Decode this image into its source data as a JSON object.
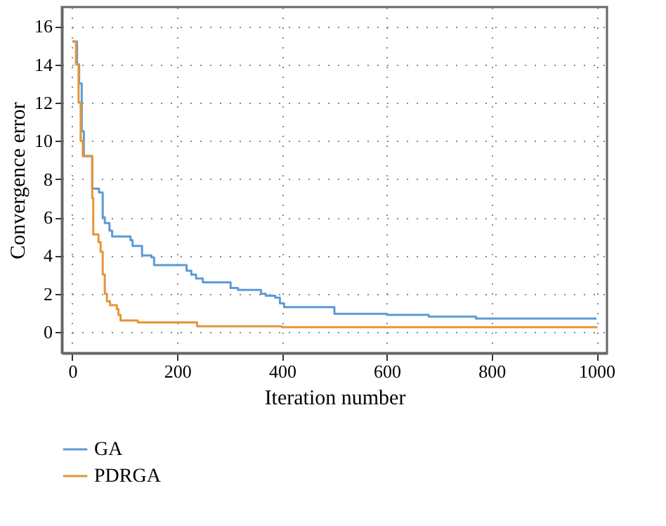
{
  "chart_data": {
    "type": "step",
    "xlabel": "Iteration number",
    "ylabel": "Convergence error",
    "xlim": [
      -20,
      1020
    ],
    "ylim": [
      -1.1,
      17
    ],
    "xticks": [
      0,
      200,
      400,
      600,
      800,
      1000
    ],
    "yticks": [
      0,
      2,
      4,
      6,
      8,
      10,
      12,
      14,
      16
    ],
    "grid": true,
    "legend": "bottom",
    "line_style": "solid",
    "series": [
      {
        "name": "GA",
        "color": "#5b9bd5",
        "x": [
          0,
          9,
          13,
          18,
          22,
          38,
          51,
          58,
          62,
          71,
          76,
          111,
          115,
          133,
          151,
          156,
          209,
          218,
          227,
          236,
          249,
          302,
          316,
          360,
          369,
          387,
          396,
          404,
          500,
          600,
          680,
          770,
          1000
        ],
        "values": [
          15.2,
          14,
          13,
          10.5,
          9.2,
          7.5,
          7.3,
          6,
          5.7,
          5.3,
          5.0,
          4.8,
          4.5,
          4.0,
          3.9,
          3.5,
          3.5,
          3.2,
          3.0,
          2.8,
          2.6,
          2.3,
          2.2,
          2.0,
          1.9,
          1.8,
          1.5,
          1.3,
          0.95,
          0.9,
          0.8,
          0.7,
          0.7
        ]
      },
      {
        "name": "PDRGA",
        "color": "#e69537",
        "x": [
          0,
          7,
          12,
          16,
          20,
          38,
          40,
          50,
          54,
          58,
          62,
          66,
          72,
          85,
          88,
          92,
          125,
          238,
          400,
          1000
        ],
        "values": [
          15.2,
          14,
          12,
          10,
          9.2,
          7,
          5.1,
          4.7,
          4.2,
          3,
          2.0,
          1.6,
          1.4,
          1.2,
          0.9,
          0.6,
          0.5,
          0.3,
          0.25,
          0.2
        ]
      }
    ]
  }
}
